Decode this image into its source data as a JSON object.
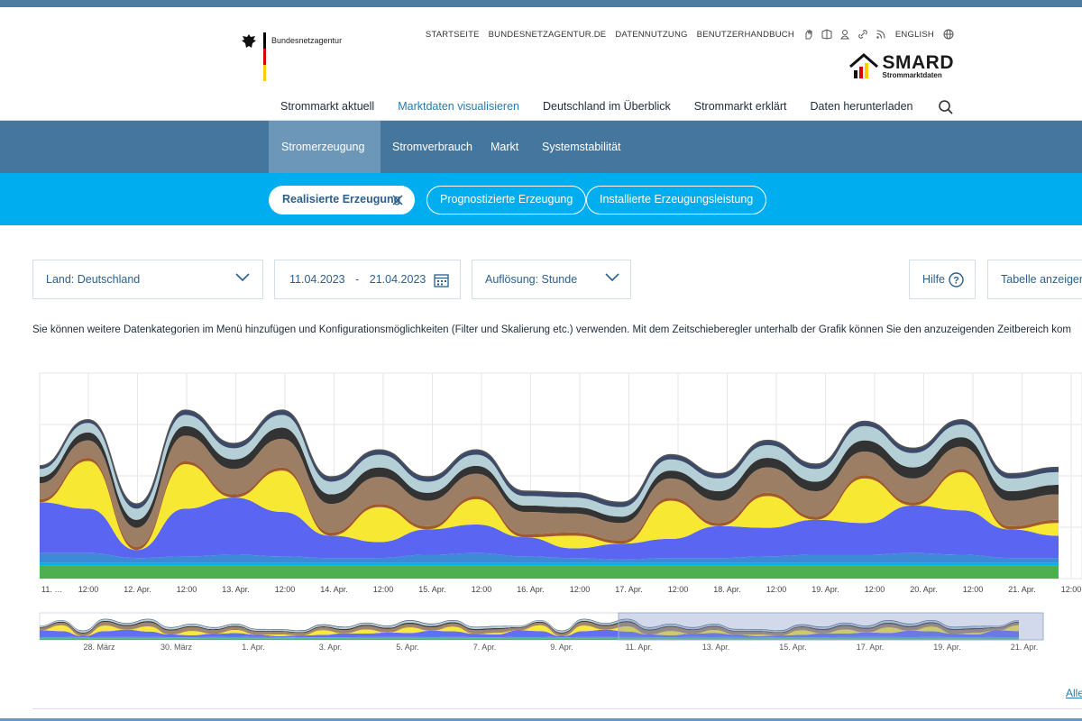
{
  "header": {
    "org_name": "Bundesnetzagentur",
    "utility_links": [
      "STARTSEITE",
      "BUNDESNETZAGENTUR.DE",
      "DATENNUTZUNG",
      "BENUTZERHANDBUCH"
    ],
    "language": "ENGLISH",
    "brand": "SMARD",
    "brand_sub": "Strommarktdaten",
    "icons": [
      "sign-language-icon",
      "easy-language-icon",
      "user-icon",
      "link-icon",
      "rss-icon",
      "globe-icon"
    ]
  },
  "main_nav": [
    {
      "label": "Strommarkt aktuell",
      "active": false
    },
    {
      "label": "Marktdaten visualisieren",
      "active": true
    },
    {
      "label": "Deutschland im Überblick",
      "active": false
    },
    {
      "label": "Strommarkt erklärt",
      "active": false
    },
    {
      "label": "Daten herunterladen",
      "active": false
    }
  ],
  "sub_nav": [
    {
      "label": "Stromerzeugung",
      "active": true
    },
    {
      "label": "Stromverbrauch",
      "active": false
    },
    {
      "label": "Markt",
      "active": false
    },
    {
      "label": "Systemstabilität",
      "active": false
    }
  ],
  "pills": [
    {
      "label": "Realisierte Erzeugung",
      "active": true
    },
    {
      "label": "Prognostizierte Erzeugung",
      "active": false
    },
    {
      "label": "Installierte Erzeugungsleistung",
      "active": false
    }
  ],
  "controls": {
    "country": "Land: Deutschland",
    "date_from": "11.04.2023",
    "date_sep": "-",
    "date_to": "21.04.2023",
    "resolution": "Auflösung: Stunde",
    "help": "Hilfe",
    "table": "Tabelle anzeigen"
  },
  "info_text": "Sie können weitere Datenkategorien im Menü hinzufügen und Konfigurationsmöglichkeiten (Filter und Skalierung etc.) verwenden. Mit dem Zeitschieberegler unterhalb der Grafik können Sie den anzuzeigenden Zeitbereich kom",
  "alle_link": "Alle",
  "colors": {
    "biomass": "#4caf50",
    "hydro": "#00b3e6",
    "wind_offshore": "#3f8ad6",
    "wind_onshore": "#5a66f2",
    "solar": "#f7e833",
    "other_renewables": "#a05a2c",
    "lignite": "#9b7e63",
    "hard_coal": "#333333",
    "natural_gas": "#b4cfd6",
    "other_conventional": "#3b4a6b",
    "accent": "#2a7ab0"
  },
  "chart_data": {
    "type": "area",
    "stacked": true,
    "x_ticks": [
      "11. …",
      "12:00",
      "12. Apr.",
      "12:00",
      "13. Apr.",
      "12:00",
      "14. Apr.",
      "12:00",
      "15. Apr.",
      "12:00",
      "16. Apr.",
      "12:00",
      "17. Apr.",
      "12:00",
      "18. Apr.",
      "12:00",
      "19. Apr.",
      "12:00",
      "20. Apr.",
      "12:00",
      "21. Apr.",
      "12:00"
    ],
    "grid": true,
    "series": [
      {
        "key": "biomass",
        "values": [
          8,
          8,
          8,
          8,
          8,
          8,
          8,
          8,
          8,
          8,
          8,
          8,
          8,
          8,
          8,
          8,
          8,
          8,
          8,
          8,
          8,
          8
        ]
      },
      {
        "key": "hydro",
        "values": [
          2,
          2,
          2,
          2,
          2,
          2,
          2,
          2,
          2,
          2,
          2,
          2,
          2,
          2,
          2,
          2,
          2,
          2,
          2,
          2,
          2,
          2
        ]
      },
      {
        "key": "wind_offshore",
        "values": [
          6,
          6,
          3,
          4,
          5,
          4,
          3,
          3,
          5,
          6,
          4,
          3,
          2,
          3,
          3,
          4,
          5,
          5,
          6,
          5,
          3,
          3
        ]
      },
      {
        "key": "wind_onshore",
        "values": [
          32,
          28,
          5,
          30,
          36,
          28,
          14,
          10,
          16,
          18,
          12,
          6,
          10,
          12,
          20,
          18,
          22,
          20,
          30,
          28,
          18,
          14
        ]
      },
      {
        "key": "solar",
        "values": [
          0,
          30,
          0,
          28,
          0,
          26,
          0,
          22,
          0,
          16,
          0,
          8,
          0,
          24,
          0,
          20,
          0,
          28,
          0,
          24,
          0,
          8
        ]
      },
      {
        "key": "other_renewables",
        "values": [
          2,
          2,
          2,
          2,
          2,
          2,
          2,
          2,
          2,
          2,
          2,
          2,
          2,
          2,
          2,
          2,
          2,
          2,
          2,
          2,
          2,
          2
        ]
      },
      {
        "key": "lignite",
        "values": [
          10,
          11,
          12,
          16,
          16,
          18,
          18,
          17,
          16,
          14,
          14,
          12,
          11,
          12,
          14,
          16,
          16,
          15,
          15,
          14,
          16,
          16
        ]
      },
      {
        "key": "hard_coal",
        "values": [
          4,
          5,
          5,
          6,
          6,
          7,
          6,
          6,
          5,
          5,
          4,
          4,
          4,
          5,
          6,
          6,
          6,
          7,
          7,
          6,
          6,
          6
        ]
      },
      {
        "key": "natural_gas",
        "values": [
          5,
          6,
          7,
          7,
          7,
          8,
          8,
          8,
          7,
          7,
          6,
          6,
          6,
          7,
          8,
          8,
          8,
          9,
          9,
          8,
          8,
          8
        ]
      },
      {
        "key": "other_conventional",
        "values": [
          2,
          2,
          3,
          3,
          3,
          3,
          3,
          3,
          3,
          3,
          3,
          3,
          3,
          3,
          3,
          3,
          3,
          3,
          3,
          3,
          3,
          3
        ]
      }
    ],
    "navigator_ticks": [
      "28. März",
      "30. März",
      "1. Apr.",
      "3. Apr.",
      "5. Apr.",
      "7. Apr.",
      "9. Apr.",
      "11. Apr.",
      "13. Apr.",
      "15. Apr.",
      "17. Apr.",
      "19. Apr.",
      "21. Apr."
    ]
  }
}
